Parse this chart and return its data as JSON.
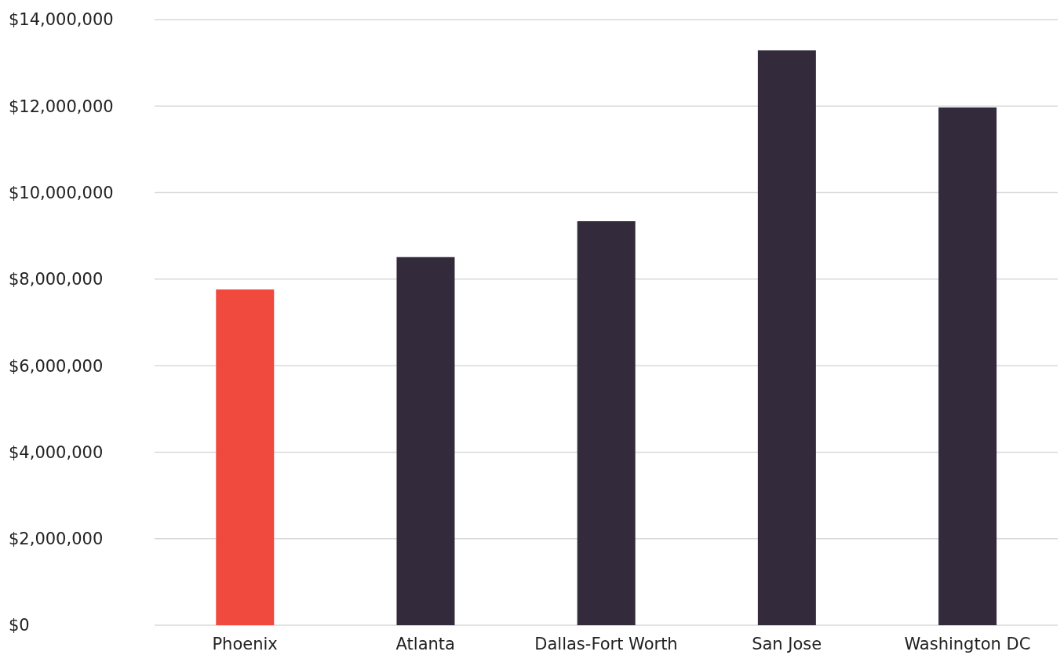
{
  "chart_data": {
    "type": "bar",
    "categories": [
      "Phoenix",
      "Atlanta",
      "Dallas-Fort Worth",
      "San Jose",
      "Washington DC"
    ],
    "values": [
      7760000,
      8510000,
      9340000,
      13290000,
      11970000
    ],
    "colors": [
      "#f04a3e",
      "#332a3b",
      "#332a3b",
      "#332a3b",
      "#332a3b"
    ],
    "ylim": [
      0,
      14000000
    ],
    "yticks": [
      {
        "value": 0,
        "label": "$0"
      },
      {
        "value": 2000000,
        "label": "$2,000,000"
      },
      {
        "value": 4000000,
        "label": "$4,000,000"
      },
      {
        "value": 6000000,
        "label": "$6,000,000"
      },
      {
        "value": 8000000,
        "label": "$8,000,000"
      },
      {
        "value": 10000000,
        "label": "$10,000,000"
      },
      {
        "value": 12000000,
        "label": "$12,000,000"
      },
      {
        "value": 14000000,
        "label": "$14,000,000"
      }
    ],
    "grid": "y"
  }
}
